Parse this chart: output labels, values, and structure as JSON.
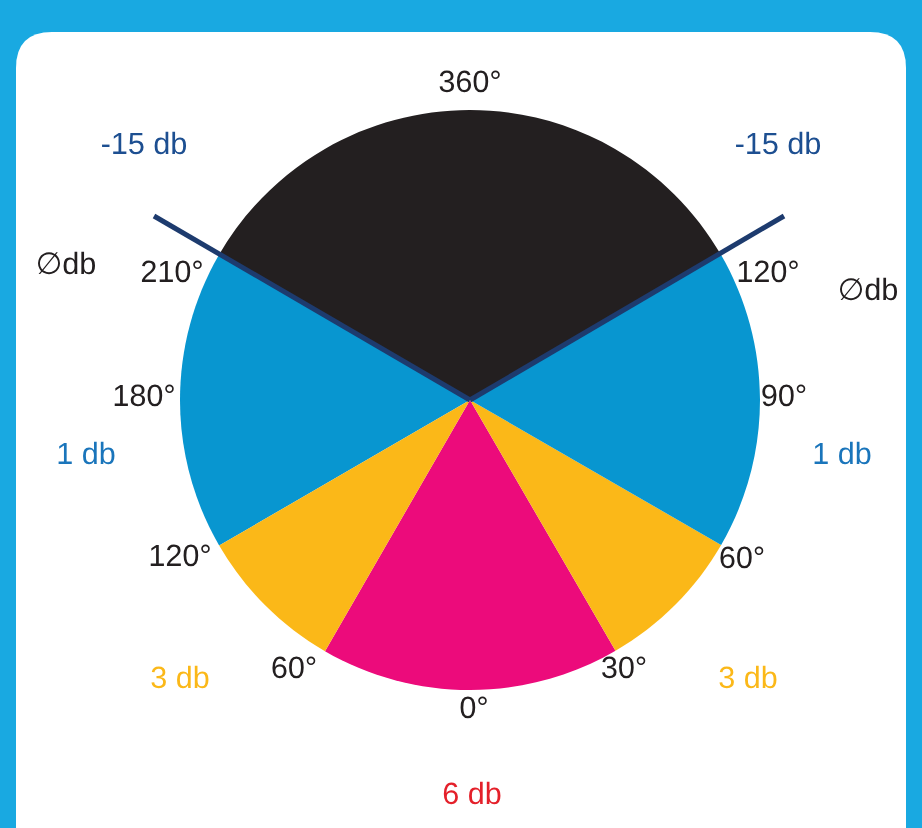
{
  "chart_data": {
    "type": "pie",
    "categories": [
      null,
      null,
      null,
      null,
      null,
      null
    ],
    "values": [
      16.7,
      8.3,
      16.7,
      33.3,
      16.7,
      8.3
    ],
    "colors": [
      "#ec0b7b",
      "#fbb818",
      "#0896d0",
      "#231f20",
      "#0896d0",
      "#fbb818"
    ],
    "annotations": [
      "360°",
      "120°",
      "90°",
      "60°",
      "30°",
      "0°",
      "60°",
      "120°",
      "180°",
      "210°",
      "-15 db",
      "-15 db",
      "∅db",
      "∅db",
      "1 db",
      "1 db",
      "3 db",
      "3 db",
      "6 db"
    ]
  }
}
